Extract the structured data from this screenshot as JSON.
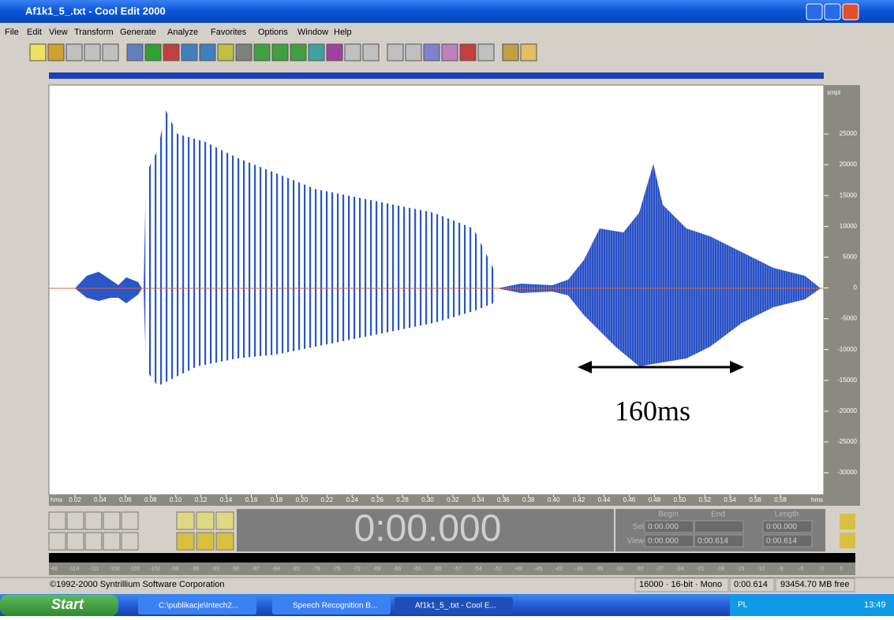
{
  "window": {
    "title": "Af1k1_5_.txt - Cool Edit 2000"
  },
  "menu": [
    "File",
    "Edit",
    "View",
    "Transform",
    "Generate",
    "Analyze",
    "Favorites",
    "Options",
    "Window",
    "Help"
  ],
  "waveform": {
    "amplitude_unit": "smpl",
    "amplitude_ticks": [
      "25000",
      "20000",
      "15000",
      "10000",
      "5000",
      "0",
      "-5000",
      "-10000",
      "-15000",
      "-20000",
      "-25000",
      "-30000"
    ],
    "time_unit": "hms",
    "time_ticks": [
      "0.02",
      "0.04",
      "0.06",
      "0.08",
      "0.10",
      "0.12",
      "0.14",
      "0.16",
      "0.18",
      "0.20",
      "0.22",
      "0.24",
      "0.26",
      "0.28",
      "0.30",
      "0.32",
      "0.34",
      "0.36",
      "0.38",
      "0.40",
      "0.42",
      "0.44",
      "0.46",
      "0.48",
      "0.50",
      "0.52",
      "0.54",
      "0.56",
      "0.58"
    ],
    "annotation": "160ms"
  },
  "transport": {
    "time": "0:00.000"
  },
  "selection": {
    "headers": [
      "Begin",
      "End",
      "Length"
    ],
    "sel": {
      "label": "Sel",
      "begin": "0:00.000",
      "length": "0:00.000"
    },
    "view": {
      "label": "View",
      "begin": "0:00.000",
      "end": "0:00.614",
      "length": "0:00.614"
    }
  },
  "level_meter": [
    "-46",
    "-114",
    "-111",
    "-108",
    "-105",
    "-102",
    "-99",
    "-96",
    "-93",
    "-90",
    "-87",
    "-84",
    "-81",
    "-78",
    "-75",
    "-72",
    "-69",
    "-66",
    "-63",
    "-60",
    "-57",
    "-54",
    "-51",
    "-48",
    "-45",
    "-42",
    "-39",
    "-36",
    "-33",
    "-30",
    "-27",
    "-24",
    "-21",
    "-18",
    "-15",
    "-12",
    "-9",
    "-6",
    "-3",
    "0"
  ],
  "status": {
    "copyright": "©1992-2000 Syntrillium Software Corporation",
    "format": "16000 · 16-bit · Mono",
    "duration": "0:00.614",
    "free": "93454.70 MB free"
  },
  "taskbar": {
    "start": "Start",
    "items": [
      "C:\\publikacje\\Intech2...",
      "Speech Recognition B...",
      "Af1k1_5_.txt - Cool E..."
    ],
    "lang": "PL",
    "clock": "13:49"
  }
}
